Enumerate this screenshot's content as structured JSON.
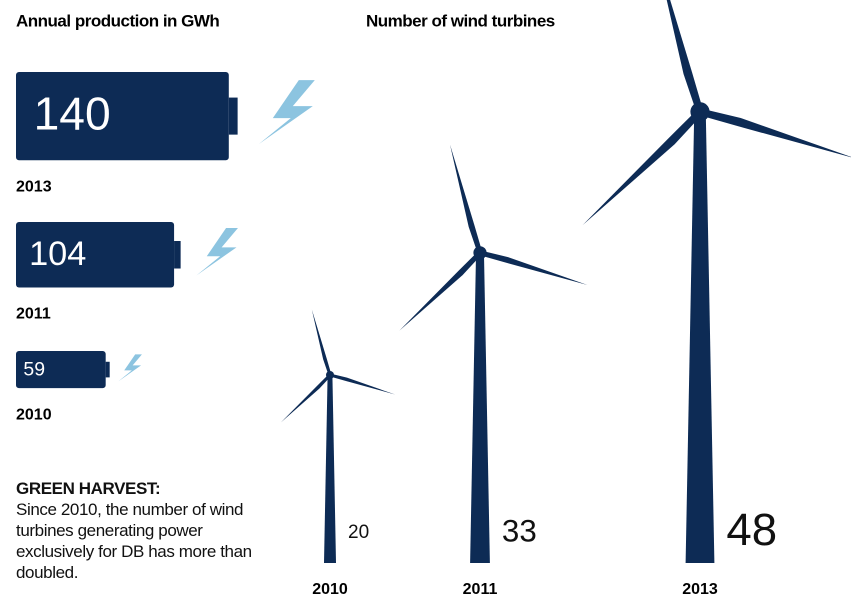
{
  "chart_data": [
    {
      "type": "battery",
      "title": "Annual production in GWh",
      "categories": [
        "2013",
        "2011",
        "2010"
      ],
      "values": [
        140,
        104,
        59
      ],
      "color": "#0d2b55",
      "bolt_color": "#8cc4e0"
    },
    {
      "type": "turbine",
      "title": "Number of wind turbines",
      "categories": [
        "2010",
        "2011",
        "2013"
      ],
      "values": [
        20,
        33,
        48
      ],
      "color": "#0d2b55"
    }
  ],
  "caption": {
    "title": "GREEN HARVEST:",
    "text": "Since 2010, the number of wind turbines generating power exclusively for DB has more than doubled."
  }
}
